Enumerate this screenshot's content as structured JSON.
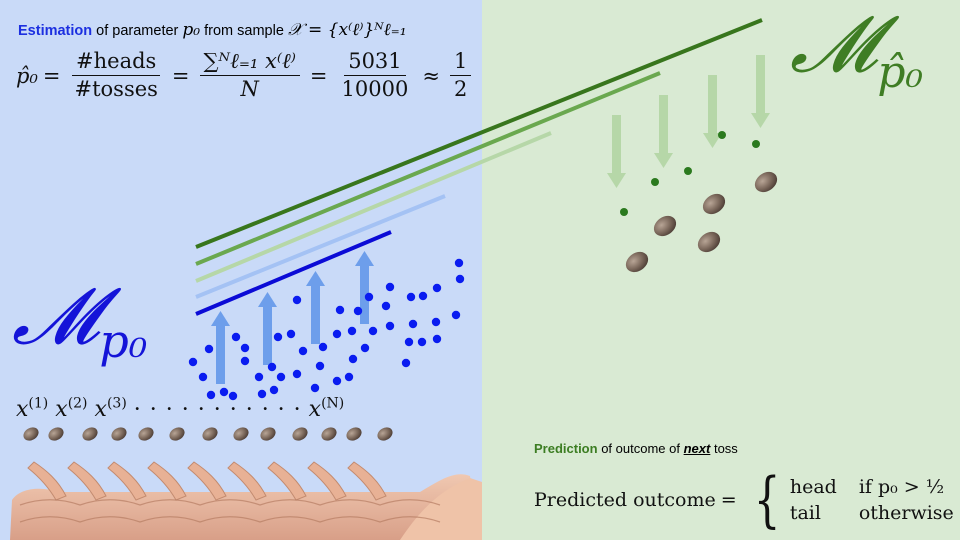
{
  "estimation": {
    "keyword": "Estimation",
    "text1": "of parameter",
    "param": "p₀",
    "text2": "from sample",
    "sample_set": "𝒳 = {x⁽ℓ⁾}ᴺℓ₌₁"
  },
  "formula": {
    "lhs": "p̂₀",
    "eq": "=",
    "f1_num": "#heads",
    "f1_den": "#tosses",
    "f2_num": "∑ᴺℓ₌₁ x⁽ℓ⁾",
    "f2_den": "N",
    "f3_num": "5031",
    "f3_den": "10000",
    "approx": "≈",
    "f4_num": "1",
    "f4_den": "2"
  },
  "model_left": {
    "symbol": "𝓜",
    "subscript": "p₀"
  },
  "model_right": {
    "symbol": "𝓜",
    "subscript": "p̂₀"
  },
  "samples": {
    "x": "x",
    "s1": "(1)",
    "s2": "(2)",
    "s3": "(3)",
    "dots": "· · · · · · · · · · ·",
    "sN": "(N)"
  },
  "prediction": {
    "keyword": "Prediction",
    "text1": "of outcome of",
    "next": "next",
    "text2": "toss",
    "lhs": "Predicted outcome",
    "eq": "=",
    "case1_val": "head",
    "case1_cond": "if p₀ > ½",
    "case2_val": "tail",
    "case2_cond": "otherwise"
  },
  "colors": {
    "left_bg": "#c9daf8",
    "right_bg": "#d9ead3",
    "blue_dots": "#0a1cf0",
    "green_dots": "#2b7a1e",
    "blue_arrows": "#6d9eeb",
    "green_arrows": "#b6d7a8",
    "line_dark_green": "#38761d",
    "line_green": "#6aa84f",
    "line_light_green": "#b6d7a8",
    "line_light_blue": "#a4c2f4",
    "line_blue": "#0b0bd6"
  },
  "icons": [
    "coin-icon",
    "hand-icon"
  ]
}
